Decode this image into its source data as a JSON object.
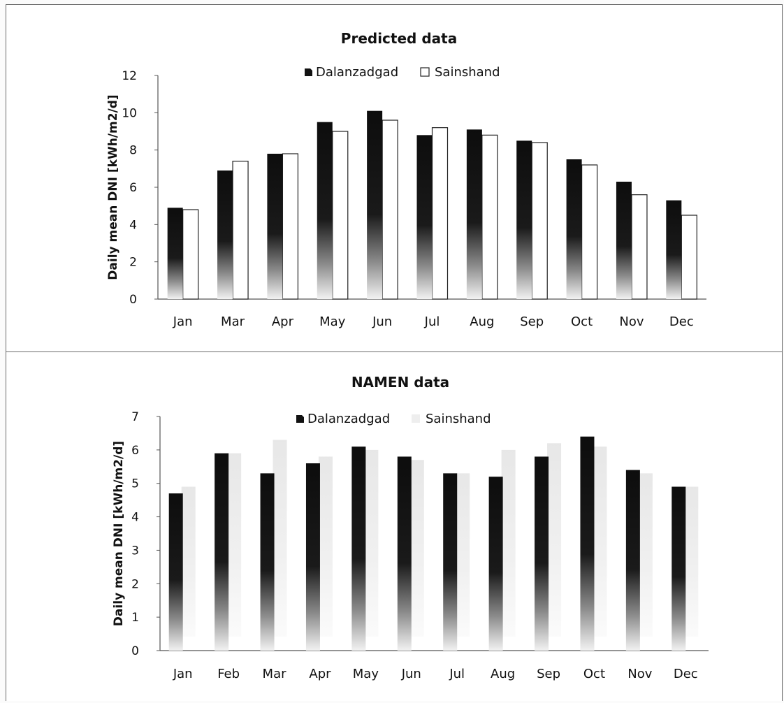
{
  "chart_data": [
    {
      "type": "bar",
      "title": "Predicted data",
      "ylabel": "Daily mean DNI [kWh/m2/d]",
      "xlabel": "",
      "ylim": [
        0,
        12
      ],
      "yticks": [
        0,
        2,
        4,
        6,
        8,
        10,
        12
      ],
      "categories": [
        "Jan",
        "Mar",
        "Apr",
        "May",
        "Jun",
        "Jul",
        "Aug",
        "Sep",
        "Oct",
        "Nov",
        "Dec"
      ],
      "legend_position": "top-center",
      "grid": false,
      "series": [
        {
          "name": "Dalanzadgad",
          "color": "#111111",
          "values": [
            4.9,
            6.9,
            7.8,
            9.5,
            10.1,
            8.8,
            9.1,
            8.5,
            7.5,
            6.3,
            5.3
          ]
        },
        {
          "name": "Sainshand",
          "color": "#ffffff",
          "values": [
            4.8,
            7.4,
            7.8,
            9.0,
            9.6,
            9.2,
            8.8,
            8.4,
            7.2,
            5.6,
            4.5
          ]
        }
      ]
    },
    {
      "type": "bar",
      "title": "NAMEN data",
      "ylabel": "Daily mean DNI [kWh/m2/d]",
      "xlabel": "",
      "ylim": [
        0,
        7
      ],
      "yticks": [
        0,
        1,
        2,
        3,
        4,
        5,
        6,
        7
      ],
      "categories": [
        "Jan",
        "Feb",
        "Mar",
        "Apr",
        "May",
        "Jun",
        "Jul",
        "Aug",
        "Sep",
        "Oct",
        "Nov",
        "Dec"
      ],
      "legend_position": "top-center",
      "grid": false,
      "series": [
        {
          "name": "Dalanzadgad",
          "color": "#111111",
          "values": [
            4.7,
            5.9,
            5.3,
            5.6,
            6.1,
            5.8,
            5.3,
            5.2,
            5.8,
            6.4,
            5.4,
            4.9
          ]
        },
        {
          "name": "Sainshand",
          "color": "#d9d9d9",
          "values": [
            4.9,
            5.9,
            6.3,
            5.8,
            6.0,
            5.7,
            5.3,
            6.0,
            6.2,
            6.1,
            5.3,
            4.9
          ]
        }
      ]
    }
  ]
}
